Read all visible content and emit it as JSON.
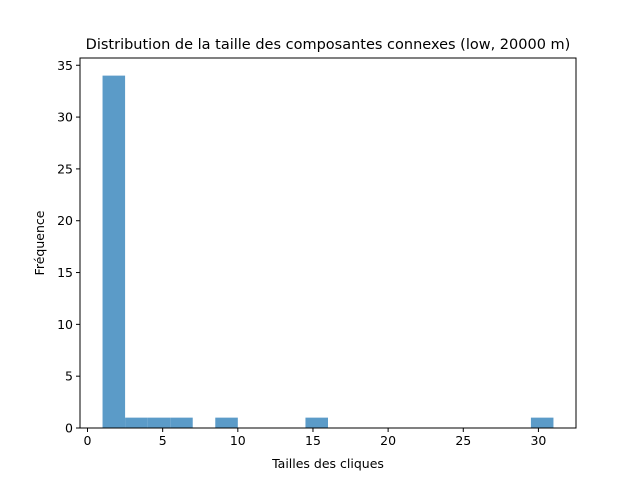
{
  "chart_data": {
    "type": "bar",
    "title": "Distribution de la taille des composantes connexes (low, 20000 m)",
    "xlabel": "Tailles des cliques",
    "ylabel": "Fréquence",
    "xlim": [
      -0.5,
      32.5
    ],
    "ylim": [
      0,
      35.7
    ],
    "xticks": [
      0,
      5,
      10,
      15,
      20,
      25,
      30
    ],
    "yticks": [
      0,
      5,
      10,
      15,
      20,
      25,
      30,
      35
    ],
    "bin_edges": [
      1.0,
      2.5,
      4.0,
      5.5,
      7.0,
      8.5,
      10.0,
      11.5,
      13.0,
      14.5,
      16.0,
      17.5,
      19.0,
      20.5,
      22.0,
      23.5,
      25.0,
      26.5,
      28.0,
      29.5,
      31.0
    ],
    "counts": [
      34,
      1,
      1,
      1,
      0,
      1,
      0,
      0,
      0,
      1,
      0,
      0,
      0,
      0,
      0,
      0,
      0,
      0,
      0,
      1
    ],
    "bar_color": "#5b9bc8",
    "grid": false
  }
}
